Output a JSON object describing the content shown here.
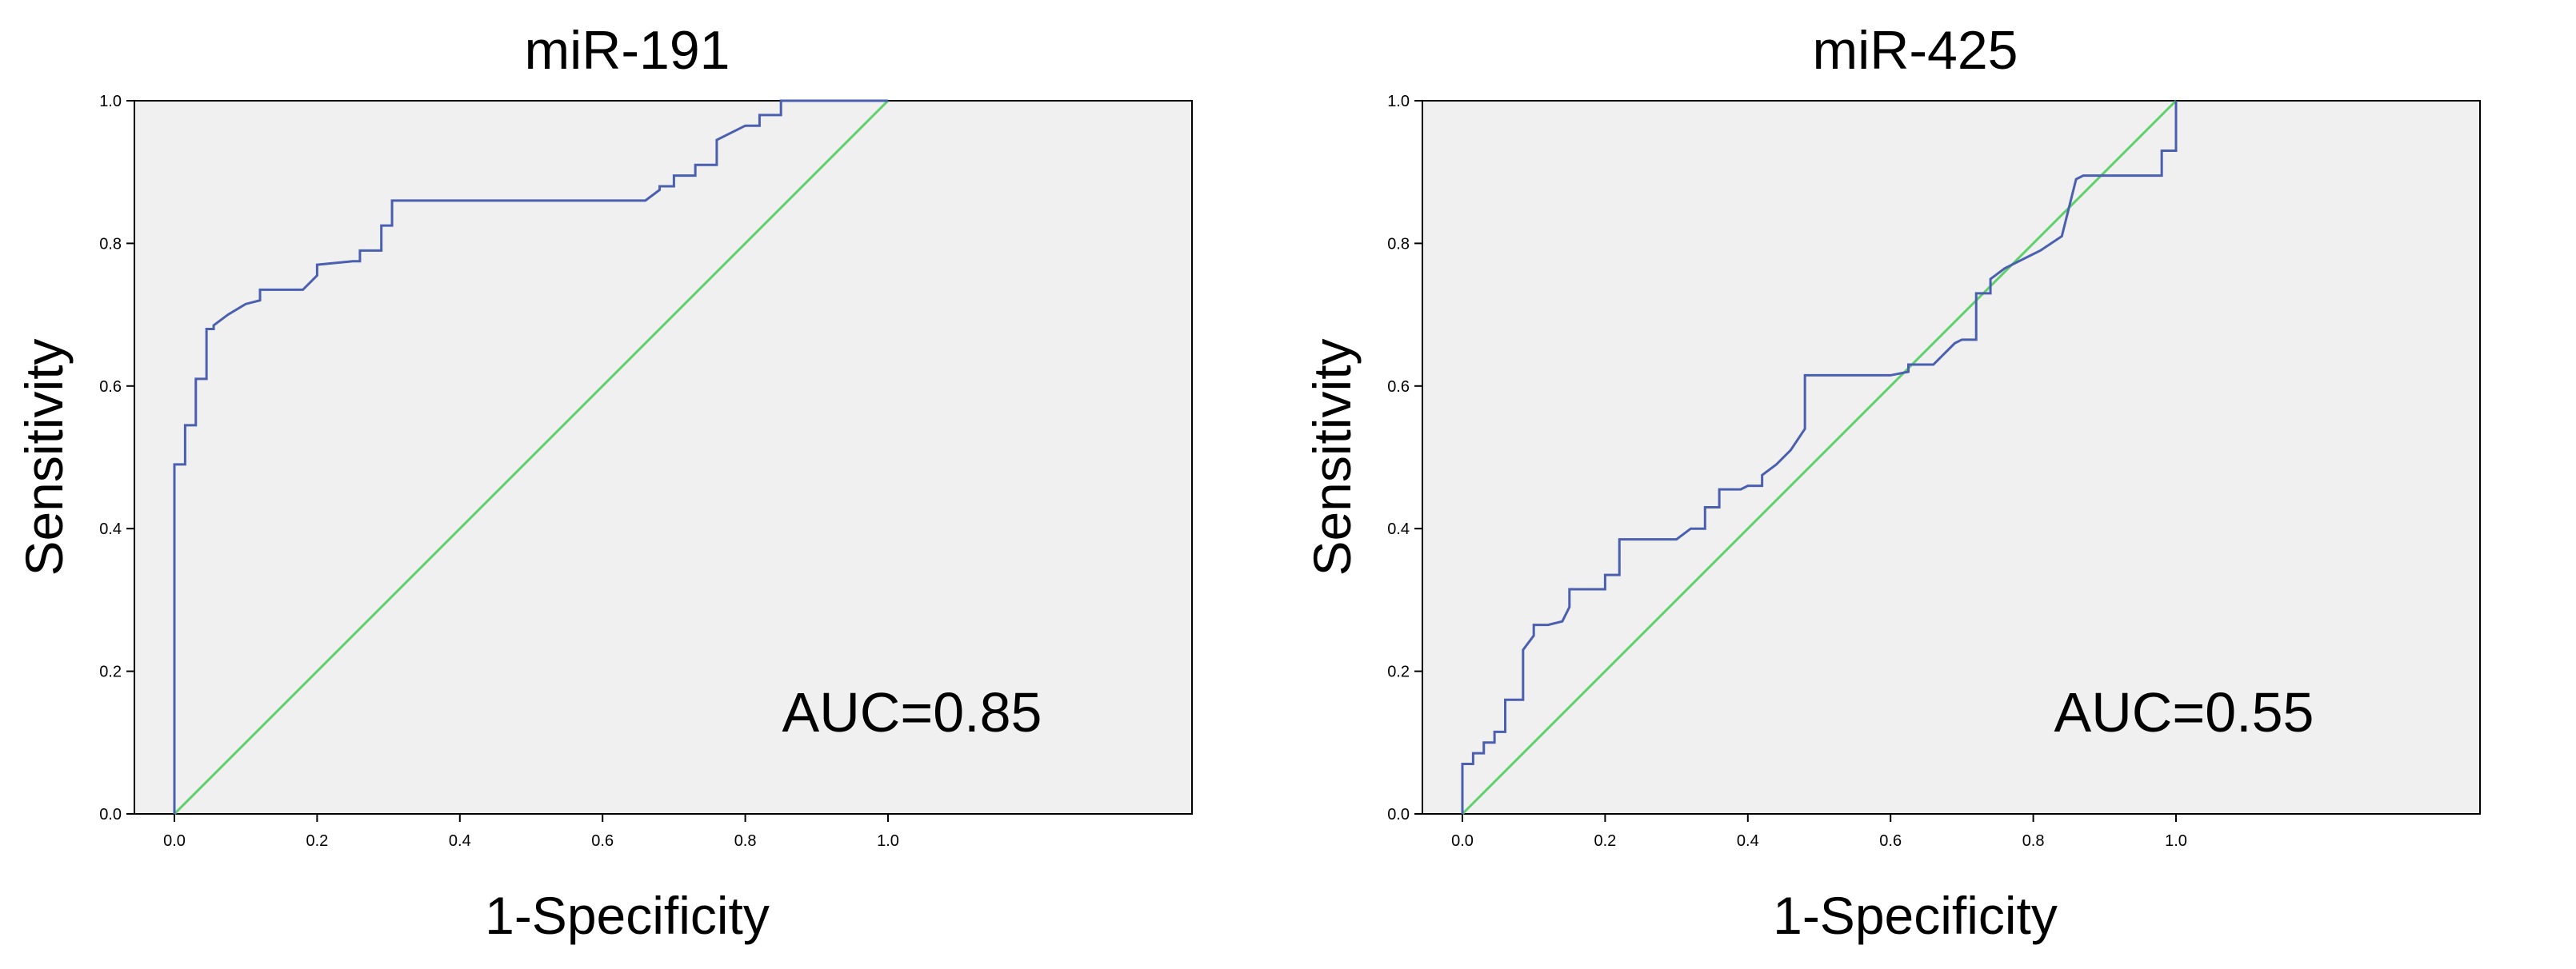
{
  "chart_data": [
    {
      "type": "line",
      "title": "miR-191",
      "xlabel": "1-Specificity",
      "ylabel": "Sensitivity",
      "xlim": [
        0,
        1
      ],
      "ylim": [
        0,
        1
      ],
      "xticks": [
        "0.0",
        "0.2",
        "0.4",
        "0.6",
        "0.8",
        "1.0"
      ],
      "yticks": [
        "0.0",
        "0.2",
        "0.4",
        "0.6",
        "0.8",
        "1.0"
      ],
      "annotation": "AUC=0.85",
      "grid": false,
      "colors": {
        "roc": "#4a5fb0",
        "reference": "#5fd06b",
        "plot_bg": "#f0f0f0"
      },
      "series": [
        {
          "x": [
            0.0,
            0.0,
            0.015,
            0.015,
            0.03,
            0.03,
            0.045,
            0.045,
            0.055,
            0.055,
            0.075,
            0.1,
            0.12,
            0.12,
            0.18,
            0.2,
            0.2,
            0.25,
            0.26,
            0.26,
            0.29,
            0.29,
            0.305,
            0.305,
            0.32,
            0.66,
            0.68,
            0.68,
            0.7,
            0.7,
            0.73,
            0.73,
            0.76,
            0.76,
            0.8,
            0.82,
            0.82,
            0.85,
            0.85,
            1.0
          ],
          "y": [
            0.0,
            0.49,
            0.49,
            0.545,
            0.545,
            0.61,
            0.61,
            0.68,
            0.68,
            0.685,
            0.7,
            0.715,
            0.72,
            0.735,
            0.735,
            0.755,
            0.77,
            0.775,
            0.775,
            0.79,
            0.79,
            0.825,
            0.825,
            0.86,
            0.86,
            0.86,
            0.875,
            0.88,
            0.88,
            0.895,
            0.895,
            0.91,
            0.91,
            0.945,
            0.965,
            0.965,
            0.98,
            0.98,
            1.0,
            1.0
          ]
        },
        {
          "x": [
            0,
            1
          ],
          "y": [
            0,
            1
          ]
        }
      ]
    },
    {
      "type": "line",
      "title": "miR-425",
      "xlabel": "1-Specificity",
      "ylabel": "Sensitivity",
      "xlim": [
        0,
        1
      ],
      "ylim": [
        0,
        1
      ],
      "xticks": [
        "0.0",
        "0.2",
        "0.4",
        "0.6",
        "0.8",
        "1.0"
      ],
      "yticks": [
        "0.0",
        "0.2",
        "0.4",
        "0.6",
        "0.8",
        "1.0"
      ],
      "annotation": "AUC=0.55",
      "grid": false,
      "colors": {
        "roc": "#4a5fb0",
        "reference": "#5fd06b",
        "plot_bg": "#f0f0f0"
      },
      "series": [
        {
          "x": [
            0.0,
            0.0,
            0.015,
            0.015,
            0.03,
            0.03,
            0.045,
            0.045,
            0.06,
            0.06,
            0.085,
            0.085,
            0.1,
            0.1,
            0.12,
            0.14,
            0.15,
            0.15,
            0.2,
            0.2,
            0.22,
            0.22,
            0.3,
            0.32,
            0.34,
            0.34,
            0.36,
            0.36,
            0.39,
            0.4,
            0.42,
            0.42,
            0.44,
            0.46,
            0.48,
            0.48,
            0.6,
            0.625,
            0.625,
            0.66,
            0.69,
            0.7,
            0.72,
            0.72,
            0.74,
            0.74,
            0.76,
            0.78,
            0.81,
            0.84,
            0.86,
            0.87,
            0.98,
            0.98,
            1.0,
            1.0
          ],
          "y": [
            0.0,
            0.07,
            0.07,
            0.085,
            0.085,
            0.1,
            0.1,
            0.115,
            0.115,
            0.16,
            0.16,
            0.23,
            0.25,
            0.265,
            0.265,
            0.27,
            0.29,
            0.315,
            0.315,
            0.335,
            0.335,
            0.385,
            0.385,
            0.4,
            0.4,
            0.43,
            0.43,
            0.455,
            0.455,
            0.46,
            0.46,
            0.475,
            0.49,
            0.51,
            0.54,
            0.615,
            0.615,
            0.62,
            0.63,
            0.63,
            0.66,
            0.665,
            0.665,
            0.73,
            0.73,
            0.75,
            0.765,
            0.775,
            0.79,
            0.81,
            0.89,
            0.895,
            0.895,
            0.93,
            0.93,
            1.0
          ]
        },
        {
          "x": [
            0,
            1
          ],
          "y": [
            0,
            1
          ]
        }
      ]
    }
  ]
}
